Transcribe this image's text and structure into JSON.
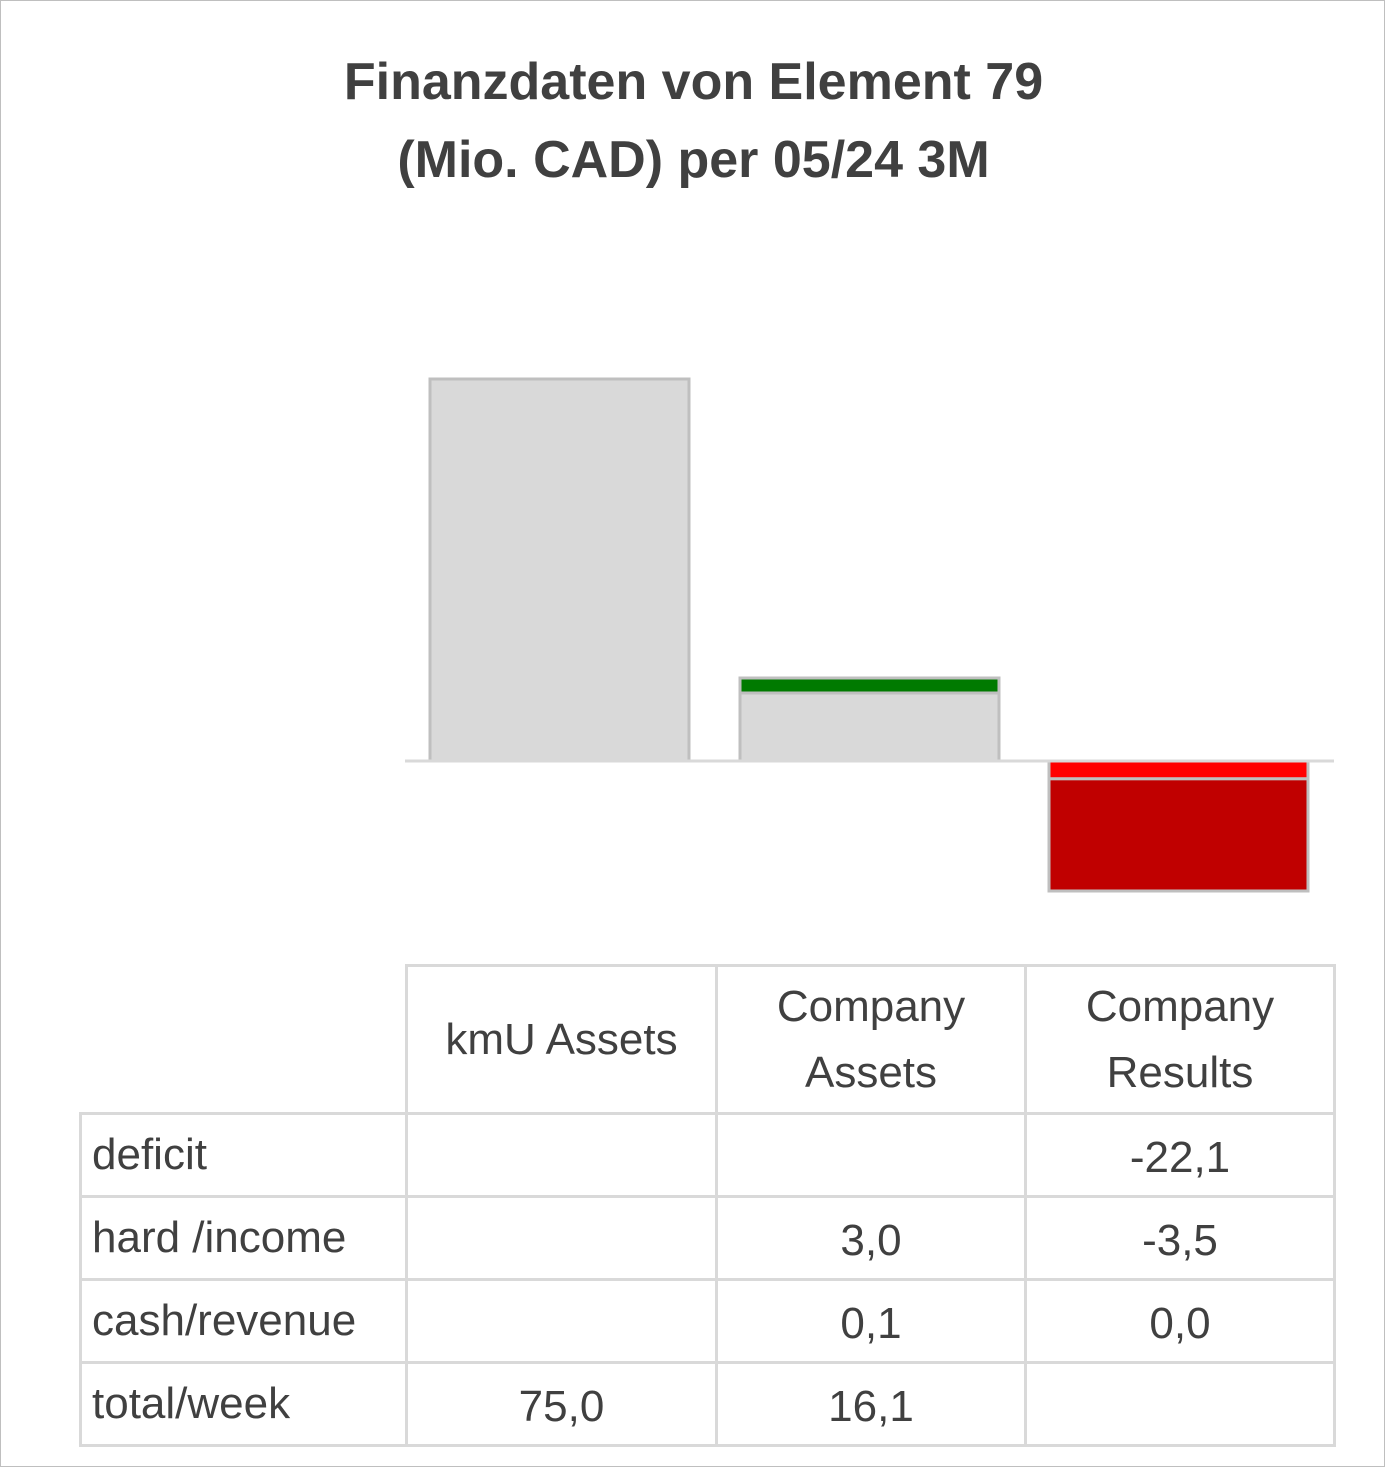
{
  "chart_data": {
    "type": "bar",
    "title": "Finanzdaten von Element 79",
    "subtitle": "(Mio. CAD) per 05/24 3M",
    "categories": [
      "kmU Assets",
      "Company Assets",
      "Company Results"
    ],
    "category_headers": [
      [
        "kmU Assets"
      ],
      [
        "Company",
        "Assets"
      ],
      [
        "Company",
        "Results"
      ]
    ],
    "series": [
      {
        "name": "deficit",
        "values": [
          null,
          null,
          -22.1
        ],
        "labels": [
          "",
          "",
          "-22,1"
        ],
        "color": "#c00000"
      },
      {
        "name": "hard /income",
        "values": [
          null,
          3.0,
          -3.5
        ],
        "labels": [
          "",
          "3,0",
          "-3,5"
        ],
        "color_positive": "#007a00",
        "color_negative": "#ff0000"
      },
      {
        "name": "cash/revenue",
        "values": [
          null,
          0.1,
          0.0
        ],
        "labels": [
          "",
          "0,1",
          "0,0"
        ],
        "color": "#d9d9d9"
      },
      {
        "name": "total/week",
        "values": [
          75.0,
          16.1,
          null
        ],
        "labels": [
          "75,0",
          "16,1",
          ""
        ],
        "color": "#d9d9d9"
      }
    ],
    "ylim": [
      -25.6,
      75.0
    ],
    "grid": false,
    "legend": "table-below"
  }
}
